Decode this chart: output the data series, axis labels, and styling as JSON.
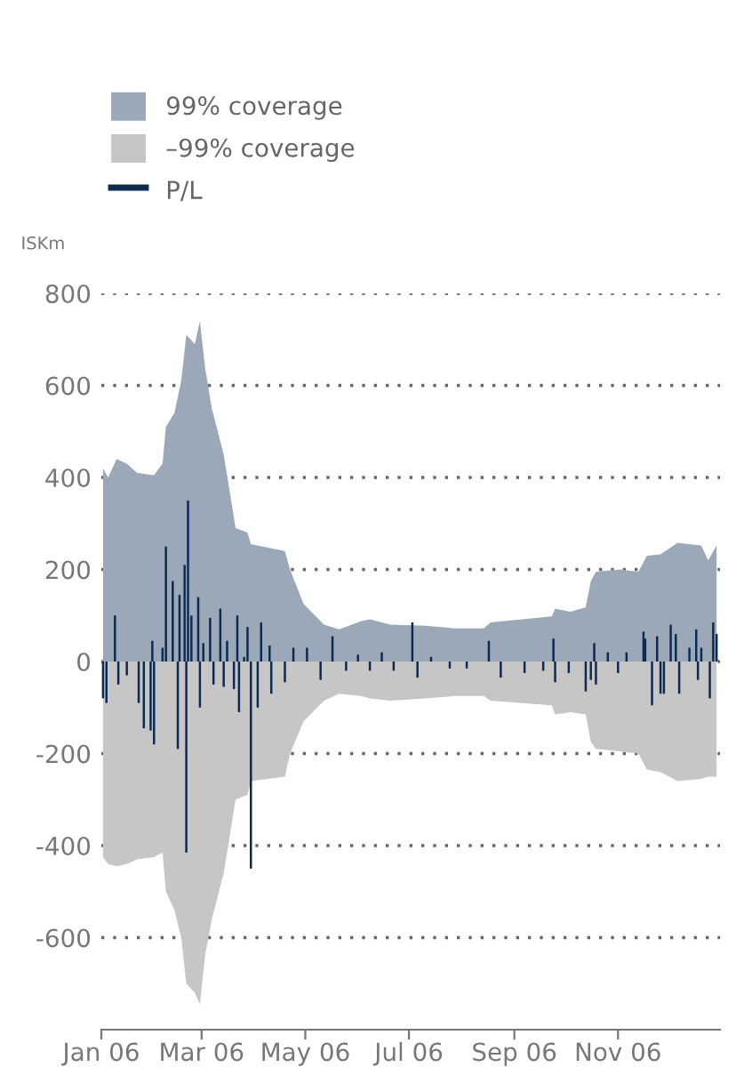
{
  "chart_data": {
    "type": "area",
    "ylabel": "ISKm",
    "legend": "top left",
    "grid": "y",
    "x": [
      "2006-01-02",
      "2006-01-05",
      "2006-01-10",
      "2006-01-16",
      "2006-01-22",
      "2006-02-01",
      "2006-02-06",
      "2006-02-08",
      "2006-02-13",
      "2006-02-17",
      "2006-02-20",
      "2006-02-25",
      "2006-02-28",
      "2006-03-03",
      "2006-03-07",
      "2006-03-14",
      "2006-03-21",
      "2006-03-28",
      "2006-03-30",
      "2006-04-19",
      "2006-04-22",
      "2006-04-30",
      "2006-05-12",
      "2006-05-21",
      "2006-06-03",
      "2006-06-08",
      "2006-06-20",
      "2006-07-11",
      "2006-07-28",
      "2006-08-14",
      "2006-08-18",
      "2006-09-23",
      "2006-09-25",
      "2006-10-04",
      "2006-10-13",
      "2006-10-16",
      "2006-10-19",
      "2006-11-02",
      "2006-11-13",
      "2006-11-18",
      "2006-11-26",
      "2006-12-06",
      "2006-12-20",
      "2006-12-24",
      "2006-12-29"
    ],
    "series": [
      {
        "name": "99% coverage",
        "color": "#9ba8b8",
        "values": [
          420,
          400,
          440,
          430,
          410,
          405,
          430,
          510,
          540,
          610,
          710,
          690,
          740,
          640,
          550,
          450,
          290,
          280,
          255,
          240,
          200,
          125,
          80,
          70,
          88,
          92,
          80,
          78,
          72,
          72,
          85,
          98,
          115,
          108,
          118,
          175,
          195,
          200,
          195,
          230,
          233,
          258,
          252,
          220,
          252
        ]
      },
      {
        "name": "–99% coverage",
        "color": "#c6c6c6",
        "values": [
          -425,
          -440,
          -445,
          -440,
          -430,
          -425,
          -415,
          -500,
          -540,
          -600,
          -700,
          -720,
          -745,
          -640,
          -560,
          -460,
          -300,
          -290,
          -260,
          -250,
          -200,
          -130,
          -85,
          -70,
          -75,
          -80,
          -85,
          -80,
          -75,
          -75,
          -85,
          -95,
          -115,
          -110,
          -115,
          -175,
          -190,
          -195,
          -200,
          -235,
          -240,
          -260,
          -255,
          -250,
          -250
        ]
      },
      {
        "name": "P/L",
        "type": "bar",
        "color": "#0d2b52",
        "x": [
          "2006-01-02",
          "2006-01-04",
          "2006-01-09",
          "2006-01-11",
          "2006-01-16",
          "2006-01-23",
          "2006-01-26",
          "2006-01-30",
          "2006-01-31",
          "2006-02-01",
          "2006-02-06",
          "2006-02-08",
          "2006-02-12",
          "2006-02-15",
          "2006-02-16",
          "2006-02-19",
          "2006-02-20",
          "2006-02-21",
          "2006-02-23",
          "2006-02-27",
          "2006-02-28",
          "2006-03-02",
          "2006-03-06",
          "2006-03-08",
          "2006-03-12",
          "2006-03-14",
          "2006-03-16",
          "2006-03-20",
          "2006-03-22",
          "2006-03-23",
          "2006-03-26",
          "2006-03-28",
          "2006-03-30",
          "2006-04-03",
          "2006-04-05",
          "2006-04-10",
          "2006-04-11",
          "2006-04-19",
          "2006-04-24",
          "2006-05-02",
          "2006-05-10",
          "2006-05-17",
          "2006-05-25",
          "2006-06-01",
          "2006-06-08",
          "2006-06-15",
          "2006-06-22",
          "2006-07-03",
          "2006-07-06",
          "2006-07-14",
          "2006-07-25",
          "2006-08-04",
          "2006-08-17",
          "2006-08-24",
          "2006-09-07",
          "2006-09-18",
          "2006-09-24",
          "2006-09-25",
          "2006-10-03",
          "2006-10-13",
          "2006-10-16",
          "2006-10-18",
          "2006-10-19",
          "2006-10-26",
          "2006-11-01",
          "2006-11-06",
          "2006-11-16",
          "2006-11-17",
          "2006-11-21",
          "2006-11-24",
          "2006-11-26",
          "2006-11-28",
          "2006-12-02",
          "2006-12-05",
          "2006-12-07",
          "2006-12-13",
          "2006-12-17",
          "2006-12-18",
          "2006-12-20",
          "2006-12-25",
          "2006-12-27",
          "2006-12-29"
        ],
        "values": [
          -80,
          -90,
          100,
          -50,
          -30,
          -90,
          -145,
          -150,
          45,
          -180,
          30,
          250,
          175,
          -190,
          145,
          210,
          -415,
          350,
          100,
          140,
          -100,
          40,
          95,
          -50,
          115,
          -55,
          45,
          -60,
          100,
          -110,
          10,
          75,
          -450,
          -100,
          85,
          35,
          -70,
          -45,
          30,
          30,
          -40,
          55,
          -20,
          15,
          -20,
          20,
          -20,
          85,
          -35,
          10,
          -15,
          -15,
          45,
          -35,
          -25,
          -20,
          50,
          -45,
          -25,
          -65,
          -40,
          40,
          -50,
          20,
          -25,
          20,
          65,
          50,
          -95,
          55,
          -70,
          -70,
          80,
          60,
          -70,
          30,
          70,
          -40,
          30,
          -80,
          85,
          60
        ]
      }
    ],
    "xlim": [
      "2006-01-01",
      "2006-12-31"
    ],
    "xticks": [
      {
        "value": "2006-01-01",
        "label": "Jan 06"
      },
      {
        "value": "2006-03-01",
        "label": "Mar 06"
      },
      {
        "value": "2006-05-01",
        "label": "May 06"
      },
      {
        "value": "2006-07-01",
        "label": "Jul 06"
      },
      {
        "value": "2006-09-01",
        "label": "Sep 06"
      },
      {
        "value": "2006-11-01",
        "label": "Nov 06"
      }
    ],
    "ylim": [
      -800,
      800
    ],
    "yticks": [
      -600,
      -400,
      -200,
      0,
      200,
      400,
      600,
      800
    ]
  }
}
